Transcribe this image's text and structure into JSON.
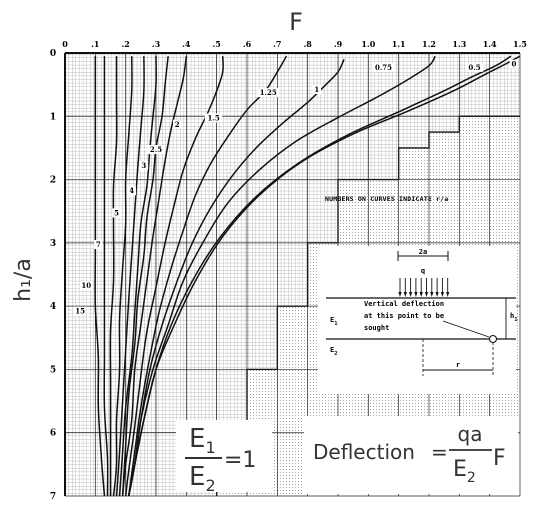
{
  "chart_data": {
    "type": "line",
    "xlabel": "F",
    "ylabel": "h₁/a",
    "x_ticks": [
      "0",
      ".1",
      ".2",
      ".3",
      ".4",
      ".5",
      ".6",
      ".7",
      ".8",
      ".9",
      "1.0",
      "1.1",
      "1.2",
      "1.3",
      "1.4",
      "1.5"
    ],
    "y_ticks": [
      "0",
      "1",
      "2",
      "3",
      "4",
      "5",
      "6",
      "7"
    ],
    "xlim": [
      0,
      1.5
    ],
    "ylim": [
      0,
      7
    ],
    "y_inverted": true,
    "grid": true,
    "note": "NUMBERS ON CURVES INDICATE r/a",
    "series": [
      {
        "name": "0",
        "points": [
          [
            1.5,
            0.05
          ],
          [
            1.45,
            0.18
          ],
          [
            1.38,
            0.35
          ],
          [
            1.28,
            0.6
          ],
          [
            1.13,
            0.92
          ],
          [
            0.95,
            1.28
          ],
          [
            0.78,
            1.72
          ],
          [
            0.64,
            2.25
          ],
          [
            0.52,
            2.9
          ],
          [
            0.43,
            3.6
          ],
          [
            0.36,
            4.3
          ],
          [
            0.3,
            5.0
          ],
          [
            0.26,
            5.8
          ],
          [
            0.23,
            6.5
          ],
          [
            0.21,
            7.0
          ]
        ]
      },
      {
        "name": "0.5",
        "points": [
          [
            1.47,
            0.05
          ],
          [
            1.42,
            0.2
          ],
          [
            1.34,
            0.38
          ],
          [
            1.24,
            0.62
          ],
          [
            1.1,
            0.93
          ],
          [
            0.93,
            1.3
          ],
          [
            0.77,
            1.74
          ],
          [
            0.63,
            2.27
          ],
          [
            0.51,
            2.92
          ],
          [
            0.42,
            3.6
          ],
          [
            0.35,
            4.3
          ],
          [
            0.3,
            5.0
          ],
          [
            0.26,
            5.8
          ],
          [
            0.23,
            6.5
          ],
          [
            0.21,
            7.0
          ]
        ]
      },
      {
        "name": "0.75",
        "points": [
          [
            1.22,
            0.05
          ],
          [
            1.2,
            0.2
          ],
          [
            1.12,
            0.45
          ],
          [
            1.02,
            0.72
          ],
          [
            0.9,
            1.02
          ],
          [
            0.76,
            1.4
          ],
          [
            0.64,
            1.85
          ],
          [
            0.54,
            2.35
          ],
          [
            0.46,
            2.95
          ],
          [
            0.39,
            3.6
          ],
          [
            0.34,
            4.3
          ],
          [
            0.29,
            5.0
          ],
          [
            0.25,
            5.8
          ],
          [
            0.23,
            6.5
          ],
          [
            0.21,
            7.0
          ]
        ]
      },
      {
        "name": "1",
        "points": [
          [
            0.92,
            0.1
          ],
          [
            0.9,
            0.3
          ],
          [
            0.86,
            0.5
          ],
          [
            0.8,
            0.78
          ],
          [
            0.72,
            1.1
          ],
          [
            0.63,
            1.5
          ],
          [
            0.55,
            1.95
          ],
          [
            0.48,
            2.45
          ],
          [
            0.42,
            3.0
          ],
          [
            0.37,
            3.6
          ],
          [
            0.32,
            4.3
          ],
          [
            0.28,
            5.0
          ],
          [
            0.25,
            5.8
          ],
          [
            0.23,
            6.5
          ],
          [
            0.21,
            7.0
          ]
        ]
      },
      {
        "name": "1.25",
        "points": [
          [
            0.73,
            0.05
          ],
          [
            0.7,
            0.3
          ],
          [
            0.66,
            0.6
          ],
          [
            0.6,
            0.9
          ],
          [
            0.54,
            1.3
          ],
          [
            0.48,
            1.75
          ],
          [
            0.43,
            2.25
          ],
          [
            0.39,
            2.8
          ],
          [
            0.35,
            3.4
          ],
          [
            0.31,
            4.1
          ],
          [
            0.28,
            4.8
          ],
          [
            0.25,
            5.6
          ],
          [
            0.23,
            6.3
          ],
          [
            0.21,
            7.0
          ]
        ]
      },
      {
        "name": "1.5",
        "points": [
          [
            0.52,
            0.05
          ],
          [
            0.52,
            0.3
          ],
          [
            0.5,
            0.6
          ],
          [
            0.47,
            0.95
          ],
          [
            0.43,
            1.35
          ],
          [
            0.39,
            1.85
          ],
          [
            0.36,
            2.4
          ],
          [
            0.33,
            3.0
          ],
          [
            0.3,
            3.7
          ],
          [
            0.27,
            4.4
          ],
          [
            0.25,
            5.1
          ],
          [
            0.23,
            5.9
          ],
          [
            0.21,
            6.6
          ],
          [
            0.2,
            7.0
          ]
        ]
      },
      {
        "name": "2",
        "points": [
          [
            0.4,
            0.05
          ],
          [
            0.39,
            0.4
          ],
          [
            0.37,
            0.8
          ],
          [
            0.35,
            1.2
          ],
          [
            0.33,
            1.7
          ],
          [
            0.31,
            2.3
          ],
          [
            0.29,
            2.9
          ],
          [
            0.27,
            3.6
          ],
          [
            0.25,
            4.3
          ],
          [
            0.23,
            5.0
          ],
          [
            0.22,
            5.8
          ],
          [
            0.2,
            6.5
          ],
          [
            0.19,
            7.0
          ]
        ]
      },
      {
        "name": "2.5",
        "points": [
          [
            0.34,
            0.05
          ],
          [
            0.33,
            0.5
          ],
          [
            0.32,
            1.0
          ],
          [
            0.3,
            1.5
          ],
          [
            0.29,
            2.0
          ],
          [
            0.27,
            2.6
          ],
          [
            0.26,
            3.2
          ],
          [
            0.24,
            3.9
          ],
          [
            0.23,
            4.6
          ],
          [
            0.21,
            5.4
          ],
          [
            0.2,
            6.2
          ],
          [
            0.19,
            7.0
          ]
        ]
      },
      {
        "name": "3",
        "points": [
          [
            0.3,
            0.05
          ],
          [
            0.3,
            0.5
          ],
          [
            0.29,
            1.0
          ],
          [
            0.28,
            1.5
          ],
          [
            0.27,
            2.1
          ],
          [
            0.25,
            2.7
          ],
          [
            0.24,
            3.4
          ],
          [
            0.23,
            4.1
          ],
          [
            0.22,
            4.8
          ],
          [
            0.2,
            5.6
          ],
          [
            0.19,
            6.3
          ],
          [
            0.18,
            7.0
          ]
        ]
      },
      {
        "name": "4",
        "points": [
          [
            0.26,
            0.05
          ],
          [
            0.26,
            0.6
          ],
          [
            0.25,
            1.2
          ],
          [
            0.24,
            1.8
          ],
          [
            0.23,
            2.5
          ],
          [
            0.22,
            3.2
          ],
          [
            0.21,
            3.9
          ],
          [
            0.2,
            4.7
          ],
          [
            0.19,
            5.5
          ],
          [
            0.18,
            6.3
          ],
          [
            0.17,
            7.0
          ]
        ]
      },
      {
        "name": "5",
        "points": [
          [
            0.22,
            0.05
          ],
          [
            0.22,
            0.6
          ],
          [
            0.21,
            1.3
          ],
          [
            0.2,
            2.0
          ],
          [
            0.2,
            2.7
          ],
          [
            0.19,
            3.4
          ],
          [
            0.18,
            4.2
          ],
          [
            0.18,
            5.0
          ],
          [
            0.17,
            5.8
          ],
          [
            0.17,
            6.5
          ],
          [
            0.16,
            7.0
          ]
        ]
      },
      {
        "name": "7",
        "points": [
          [
            0.17,
            0.05
          ],
          [
            0.17,
            0.7
          ],
          [
            0.17,
            1.4
          ],
          [
            0.16,
            2.1
          ],
          [
            0.16,
            2.8
          ],
          [
            0.16,
            3.6
          ],
          [
            0.15,
            4.4
          ],
          [
            0.15,
            5.2
          ],
          [
            0.15,
            6.0
          ],
          [
            0.15,
            7.0
          ]
        ]
      },
      {
        "name": "10",
        "points": [
          [
            0.13,
            0.05
          ],
          [
            0.13,
            0.8
          ],
          [
            0.13,
            1.6
          ],
          [
            0.13,
            2.4
          ],
          [
            0.13,
            3.2
          ],
          [
            0.13,
            4.0
          ],
          [
            0.13,
            4.8
          ],
          [
            0.13,
            5.6
          ],
          [
            0.14,
            6.4
          ],
          [
            0.14,
            7.0
          ]
        ]
      },
      {
        "name": "15",
        "points": [
          [
            0.1,
            0.05
          ],
          [
            0.1,
            0.8
          ],
          [
            0.1,
            1.6
          ],
          [
            0.1,
            2.4
          ],
          [
            0.1,
            3.2
          ],
          [
            0.1,
            4.0
          ],
          [
            0.11,
            4.8
          ],
          [
            0.11,
            5.6
          ],
          [
            0.12,
            6.4
          ],
          [
            0.13,
            7.0
          ]
        ]
      }
    ],
    "curve_labels": [
      {
        "text": "0",
        "x": 1.48,
        "y": 0.2
      },
      {
        "text": "0.5",
        "x": 1.35,
        "y": 0.25
      },
      {
        "text": "0.75",
        "x": 1.05,
        "y": 0.25
      },
      {
        "text": "1",
        "x": 0.83,
        "y": 0.6
      },
      {
        "text": "1.25",
        "x": 0.67,
        "y": 0.65
      },
      {
        "text": "1.5",
        "x": 0.49,
        "y": 1.05
      },
      {
        "text": "2",
        "x": 0.37,
        "y": 1.15
      },
      {
        "text": "2.5",
        "x": 0.3,
        "y": 1.55
      },
      {
        "text": "3",
        "x": 0.26,
        "y": 1.8
      },
      {
        "text": "4",
        "x": 0.22,
        "y": 2.2
      },
      {
        "text": "5",
        "x": 0.17,
        "y": 2.55
      },
      {
        "text": "7",
        "x": 0.11,
        "y": 3.05
      },
      {
        "text": "10",
        "x": 0.07,
        "y": 3.7
      },
      {
        "text": "15",
        "x": 0.05,
        "y": 4.1
      }
    ],
    "stepped_boundary": [
      [
        0.5,
        7
      ],
      [
        0.5,
        6
      ],
      [
        0.6,
        6
      ],
      [
        0.6,
        5
      ],
      [
        0.7,
        5
      ],
      [
        0.7,
        4
      ],
      [
        0.8,
        4
      ],
      [
        0.8,
        3
      ],
      [
        0.9,
        3
      ],
      [
        0.9,
        2
      ],
      [
        1.1,
        2
      ],
      [
        1.1,
        1.5
      ],
      [
        1.2,
        1.5
      ],
      [
        1.2,
        1.25
      ],
      [
        1.3,
        1.25
      ],
      [
        1.3,
        1
      ],
      [
        1.5,
        1
      ]
    ]
  },
  "formula_left": {
    "num": "E",
    "num_sub": "1",
    "den": "E",
    "den_sub": "2",
    "rhs": "=1"
  },
  "formula_right": {
    "lhs": "Deflection",
    "eq": "=",
    "num": "qa",
    "den": "E",
    "den_sub": "2",
    "tail": "F"
  },
  "inset": {
    "load_width": "2a",
    "load": "q",
    "deflection_text": [
      "Vertical deflection",
      "at this point to be",
      "sought"
    ],
    "e1": "E",
    "e1_sub": "1",
    "e2": "E",
    "e2_sub": "2",
    "h1": "h",
    "h1_sub": "1",
    "r": "r"
  }
}
